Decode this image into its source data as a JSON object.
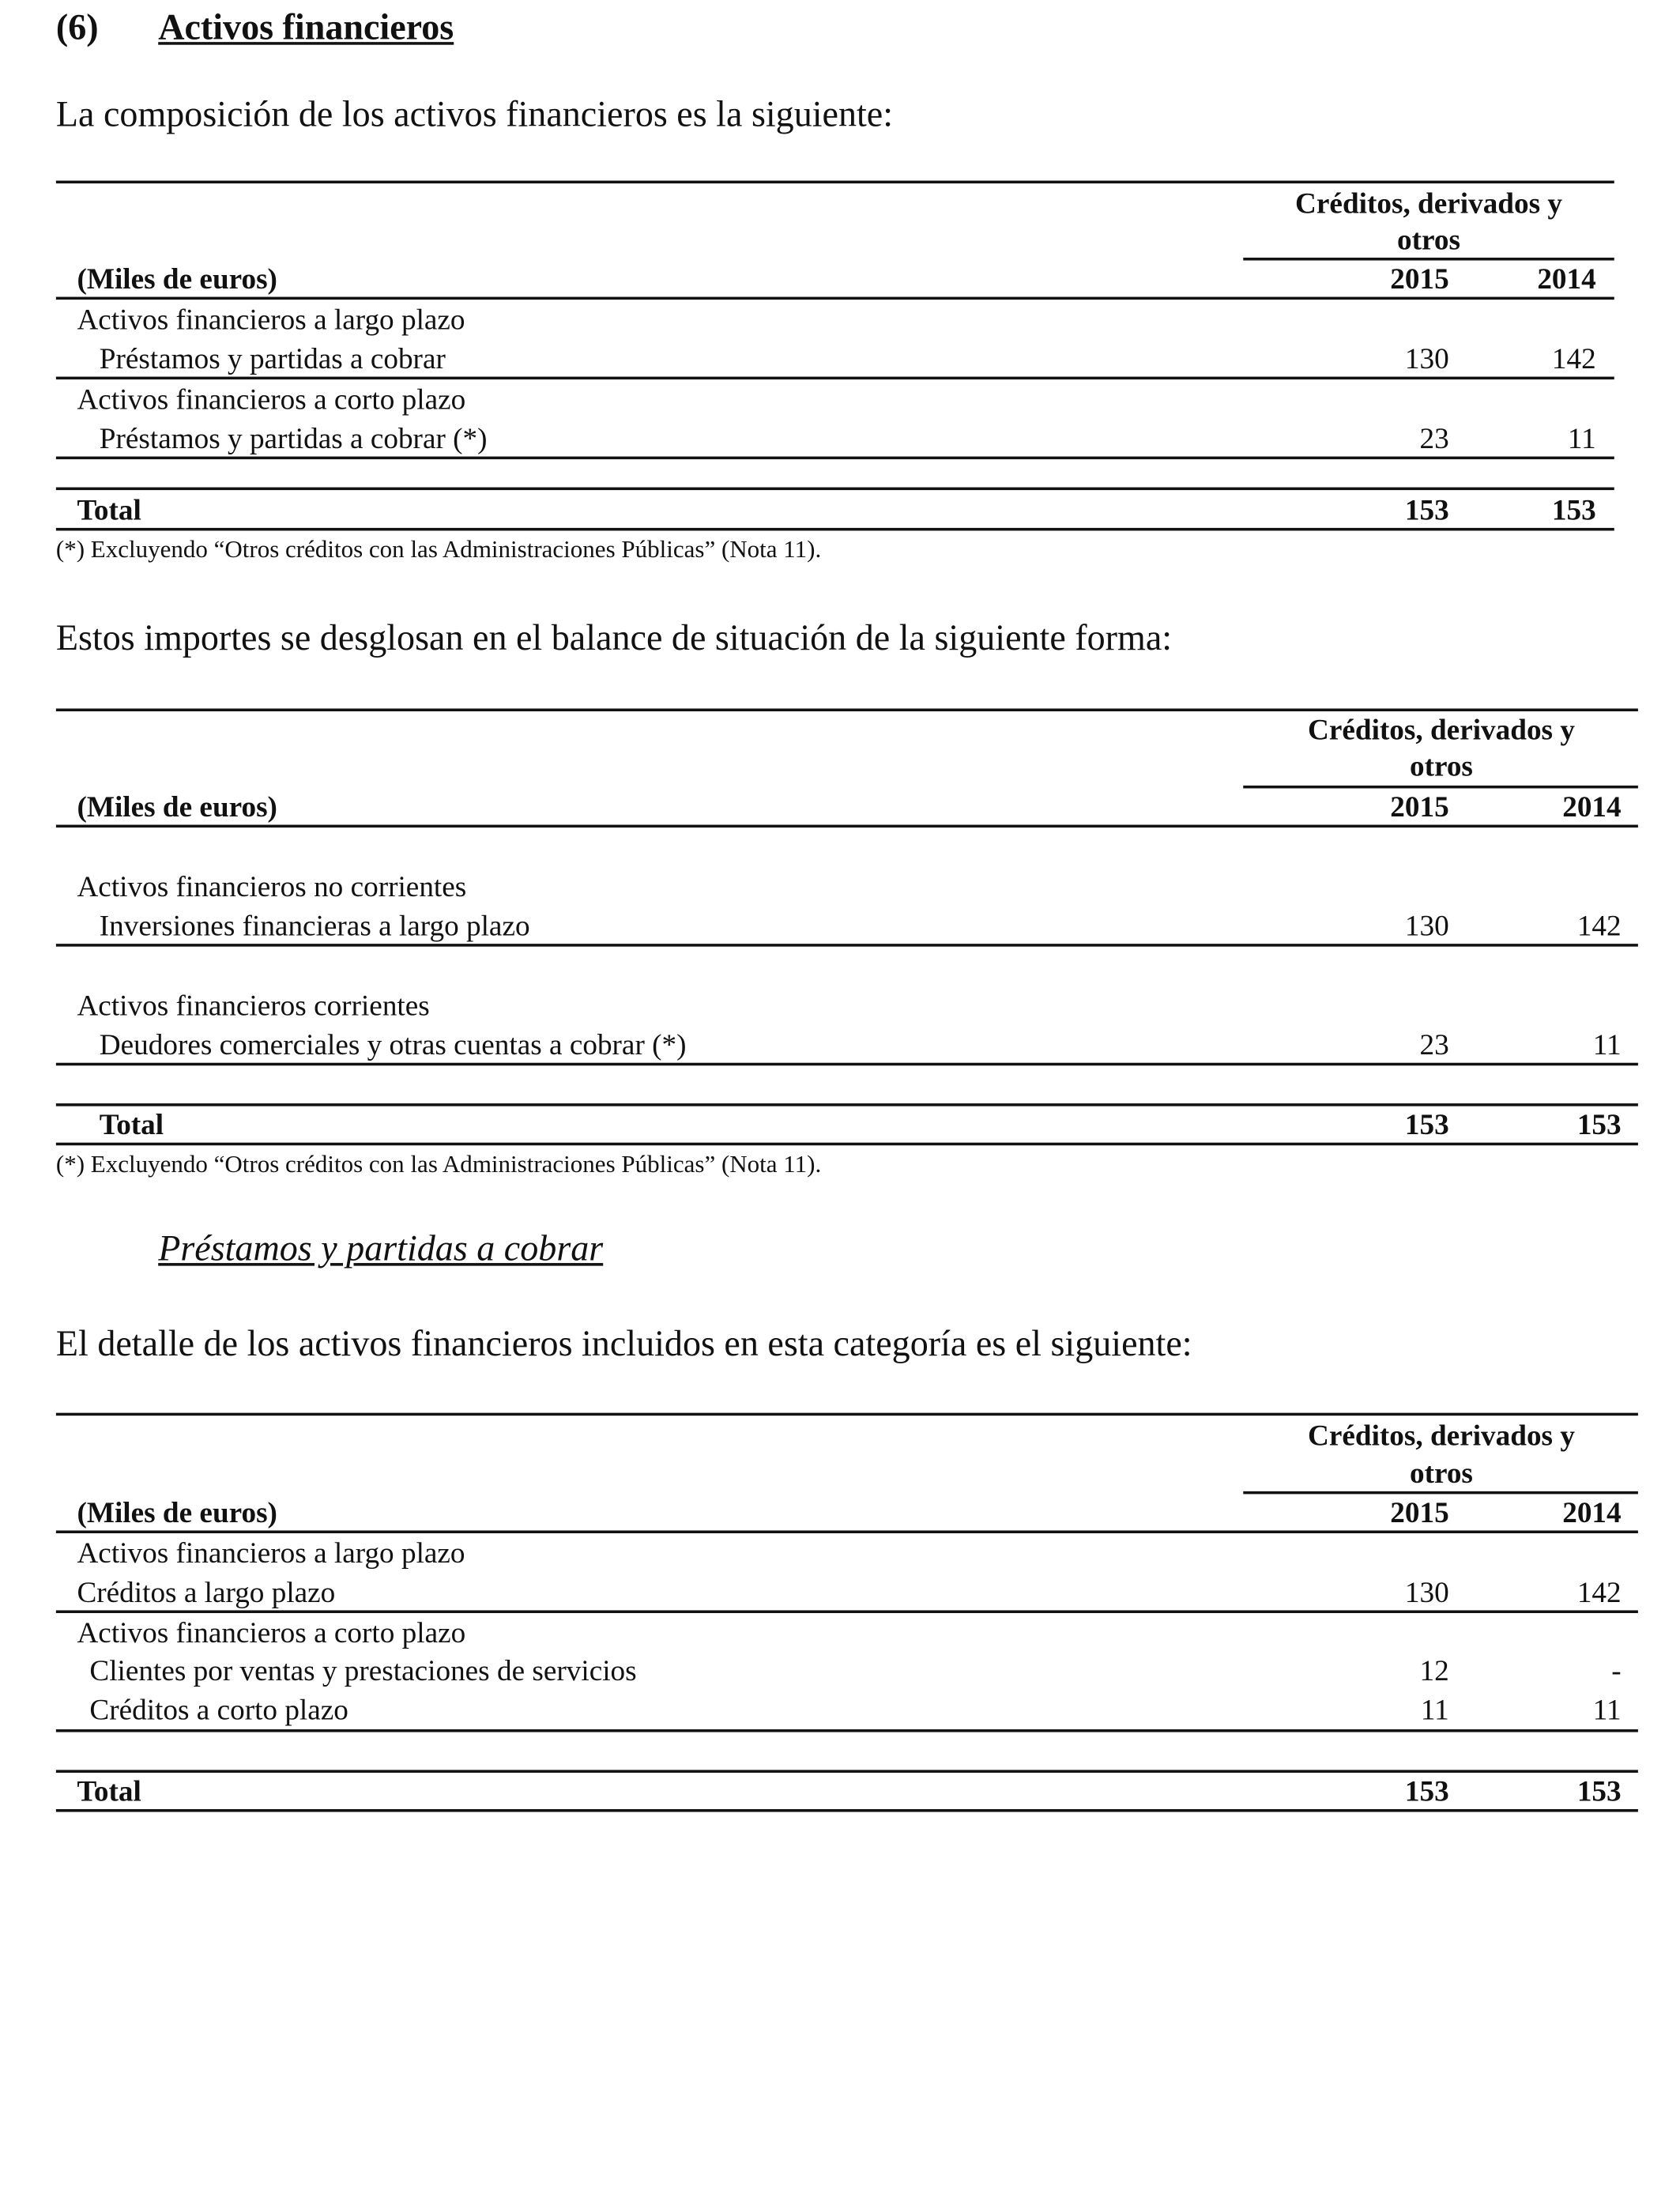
{
  "section": {
    "number": "(6)",
    "title": "Activos financieros"
  },
  "intro1": "La composición de los activos financieros es la siguiente:",
  "table1": {
    "group_header": [
      "Créditos, derivados y",
      "otros"
    ],
    "unit_label": "(Miles de euros)",
    "years": [
      "2015",
      "2014"
    ],
    "rows": [
      {
        "label": "Activos financieros a largo plazo"
      },
      {
        "label": "Préstamos y partidas a cobrar",
        "v2015": "130",
        "v2014": "142"
      },
      {
        "label": "Activos financieros a corto plazo"
      },
      {
        "label": "Préstamos y partidas a cobrar (*)",
        "v2015": "23",
        "v2014": "11"
      }
    ],
    "total": {
      "label": "Total",
      "v2015": "153",
      "v2014": "153"
    },
    "footnote": "(*) Excluyendo “Otros créditos con las Administraciones Públicas” (Nota 11)."
  },
  "intro2": "Estos importes se desglosan en el balance de situación de la siguiente forma:",
  "table2": {
    "group_header": [
      "Créditos, derivados y",
      "otros"
    ],
    "unit_label": "(Miles de euros)",
    "years": [
      "2015",
      "2014"
    ],
    "rows": [
      {
        "label": "Activos financieros no corrientes"
      },
      {
        "label": "Inversiones financieras a largo plazo",
        "v2015": "130",
        "v2014": "142"
      },
      {
        "label": "Activos financieros corrientes"
      },
      {
        "label": "Deudores comerciales y otras cuentas a cobrar (*)",
        "v2015": "23",
        "v2014": "11"
      }
    ],
    "total": {
      "label": "Total",
      "v2015": "153",
      "v2014": "153"
    },
    "footnote": "(*) Excluyendo “Otros créditos con las Administraciones Públicas” (Nota 11)."
  },
  "subheading": "Préstamos y partidas a cobrar",
  "intro3": "El detalle de los activos financieros incluidos en esta categoría es el siguiente:",
  "table3": {
    "group_header": [
      "Créditos, derivados y",
      "otros"
    ],
    "unit_label": "(Miles de euros)",
    "years": [
      "2015",
      "2014"
    ],
    "rows": [
      {
        "label": "Activos financieros a largo plazo"
      },
      {
        "label": "Créditos a largo plazo",
        "v2015": "130",
        "v2014": "142"
      },
      {
        "label": "Activos financieros a corto plazo"
      },
      {
        "label": "Clientes por ventas y prestaciones de servicios",
        "v2015": "12",
        "v2014": "-"
      },
      {
        "label": "Créditos a corto plazo",
        "v2015": "11",
        "v2014": "11"
      }
    ],
    "total": {
      "label": "Total",
      "v2015": "153",
      "v2014": "153"
    }
  }
}
